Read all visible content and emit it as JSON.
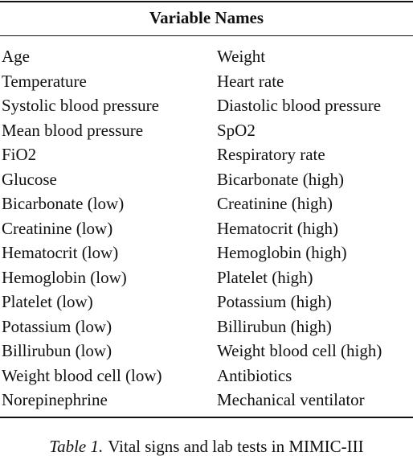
{
  "table": {
    "header": "Variable Names",
    "rows": [
      [
        "Age",
        "Weight"
      ],
      [
        "Temperature",
        "Heart rate"
      ],
      [
        "Systolic blood pressure",
        "Diastolic blood pressure"
      ],
      [
        "Mean blood pressure",
        "SpO2"
      ],
      [
        "FiO2",
        "Respiratory rate"
      ],
      [
        "Glucose",
        "Bicarbonate (high)"
      ],
      [
        "Bicarbonate (low)",
        "Creatinine (high)"
      ],
      [
        "Creatinine (low)",
        "Hematocrit (high)"
      ],
      [
        "Hematocrit (low)",
        "Hemoglobin (high)"
      ],
      [
        "Hemoglobin (low)",
        "Platelet (high)"
      ],
      [
        "Platelet (low)",
        "Potassium (high)"
      ],
      [
        "Potassium (low)",
        "Billirubun (high)"
      ],
      [
        "Billirubun (low)",
        "Weight blood cell (high)"
      ],
      [
        "Weight blood cell (low)",
        "Antibiotics"
      ],
      [
        "Norepinephrine",
        "Mechanical ventilator"
      ]
    ]
  },
  "caption": {
    "label": "Table 1.",
    "text": "Vital signs and lab tests in MIMIC-III"
  }
}
